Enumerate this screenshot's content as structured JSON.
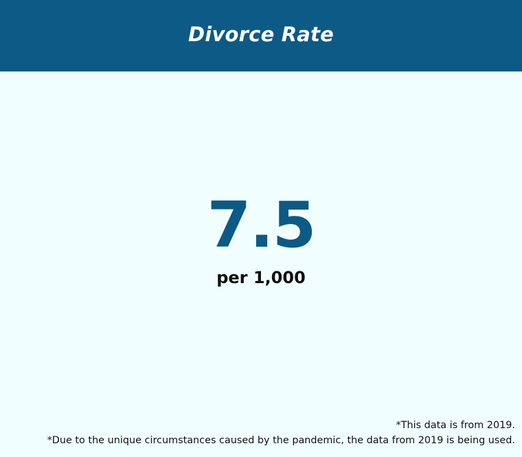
{
  "header": {
    "title": "Divorce Rate"
  },
  "stat": {
    "value": "7.5",
    "unit": "per 1,000"
  },
  "footnotes": [
    "*This data is from 2019.",
    "*Due to the unique circumstances caused by the pandemic, the data from 2019 is being used."
  ],
  "colors": {
    "header_background": "#0c5a86",
    "page_background": "#f0fefe",
    "value_color": "#0c5a86",
    "text_color": "#0f0f0f"
  }
}
